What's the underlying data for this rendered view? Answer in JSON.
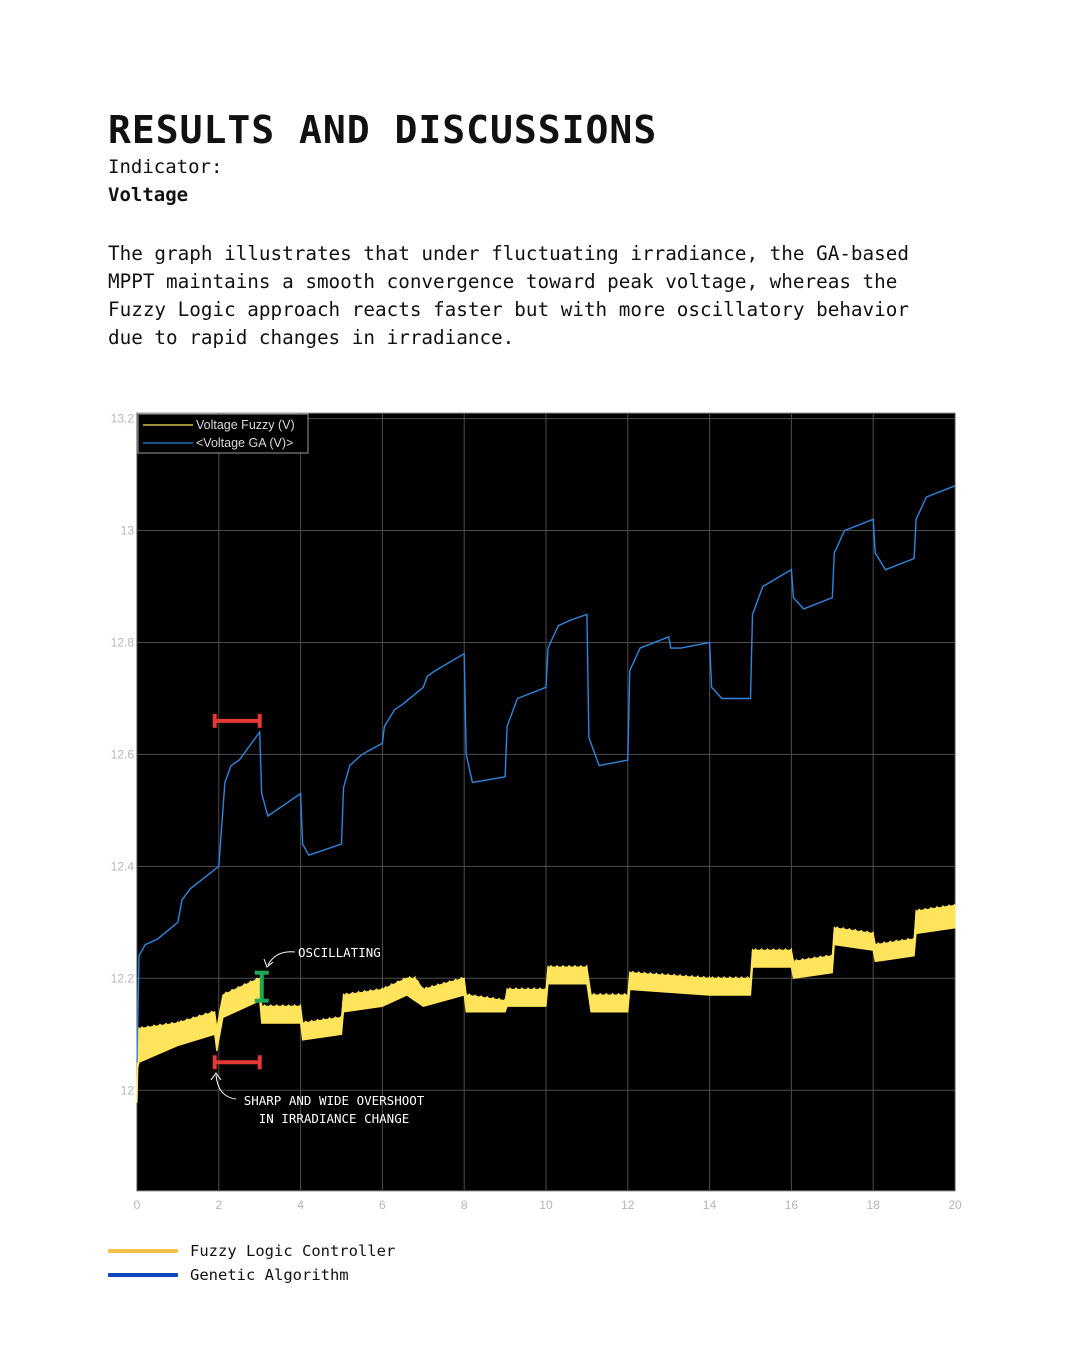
{
  "page": {
    "title": "RESULTS AND DISCUSSIONS",
    "indicator_label": "Indicator:",
    "indicator_value": "Voltage",
    "paragraph": "The graph illustrates that under fluctuating irradiance, the GA-based\nMPPT maintains a smooth convergence toward peak voltage, whereas the\nFuzzy Logic approach reacts faster but with more oscillatory behavior\ndue to rapid changes in irradiance."
  },
  "colors": {
    "fuzzy": "#ffe45c",
    "ga": "#2e86de",
    "legend_fuzzy": "#f7c04a",
    "legend_ga": "#0b47b8",
    "marker_red": "#e53935",
    "marker_green": "#1fa857",
    "plot_bg": "#000000"
  },
  "chart_data": {
    "type": "line",
    "xlim": [
      0,
      20
    ],
    "ylim": [
      11.82,
      13.21
    ],
    "xticks": [
      0,
      2,
      4,
      6,
      8,
      10,
      12,
      14,
      16,
      18,
      20
    ],
    "yticks": [
      12,
      12.2,
      12.4,
      12.6,
      12.8,
      13,
      13.2
    ],
    "grid": true,
    "legend_position": "top-left",
    "series": [
      {
        "name": "Voltage Fuzzy (V)",
        "x": [
          0,
          0.02,
          0.05,
          1,
          1.9,
          1.95,
          2.1,
          3.0,
          3.05,
          4.0,
          4.05,
          5.0,
          5.05,
          6.0,
          6.6,
          6.8,
          7.0,
          8.0,
          8.05,
          9.0,
          9.05,
          10.0,
          10.05,
          11.0,
          11.1,
          12.0,
          12.05,
          14.0,
          15.0,
          15.05,
          16.0,
          16.05,
          17.0,
          17.05,
          18.0,
          18.05,
          19.0,
          19.05,
          20
        ],
        "upper": [
          11.98,
          12.1,
          12.11,
          12.12,
          12.14,
          12.11,
          12.17,
          12.2,
          12.15,
          12.15,
          12.12,
          12.13,
          12.17,
          12.18,
          12.2,
          12.2,
          12.18,
          12.2,
          12.17,
          12.16,
          12.18,
          12.18,
          12.22,
          12.22,
          12.17,
          12.17,
          12.21,
          12.2,
          12.2,
          12.25,
          12.25,
          12.23,
          12.24,
          12.29,
          12.28,
          12.26,
          12.27,
          12.32,
          12.33
        ],
        "lower": [
          11.98,
          12.04,
          12.05,
          12.08,
          12.1,
          12.07,
          12.13,
          12.16,
          12.12,
          12.12,
          12.09,
          12.1,
          12.14,
          12.15,
          12.17,
          12.16,
          12.15,
          12.17,
          12.14,
          12.14,
          12.15,
          12.15,
          12.19,
          12.19,
          12.14,
          12.14,
          12.18,
          12.17,
          12.17,
          12.22,
          12.22,
          12.2,
          12.21,
          12.26,
          12.25,
          12.23,
          12.24,
          12.28,
          12.29
        ]
      },
      {
        "name": "<Voltage GA (V)>",
        "x": [
          0,
          0.05,
          0.2,
          0.5,
          1.0,
          1.1,
          1.3,
          2.0,
          2.05,
          2.15,
          2.3,
          2.5,
          3.0,
          3.05,
          3.2,
          4.0,
          4.05,
          4.2,
          5.0,
          5.05,
          5.2,
          5.5,
          6.0,
          6.05,
          6.3,
          6.5,
          7.0,
          7.1,
          7.3,
          8.0,
          8.05,
          8.2,
          9.0,
          9.05,
          9.3,
          10.0,
          10.05,
          10.3,
          10.6,
          11.0,
          11.05,
          11.3,
          12.0,
          12.05,
          12.3,
          13.0,
          13.05,
          13.3,
          14.0,
          14.05,
          14.3,
          15.0,
          15.05,
          15.3,
          16.0,
          16.05,
          16.3,
          17.0,
          17.05,
          17.3,
          18.0,
          18.05,
          18.3,
          19.0,
          19.05,
          19.3,
          20.0
        ],
        "y": [
          12.05,
          12.24,
          12.26,
          12.27,
          12.3,
          12.34,
          12.36,
          12.4,
          12.45,
          12.55,
          12.58,
          12.59,
          12.64,
          12.53,
          12.49,
          12.53,
          12.44,
          12.42,
          12.44,
          12.54,
          12.58,
          12.6,
          12.62,
          12.65,
          12.68,
          12.69,
          12.72,
          12.74,
          12.75,
          12.78,
          12.6,
          12.55,
          12.56,
          12.65,
          12.7,
          12.72,
          12.79,
          12.83,
          12.84,
          12.85,
          12.63,
          12.58,
          12.59,
          12.75,
          12.79,
          12.81,
          12.79,
          12.79,
          12.8,
          12.72,
          12.7,
          12.7,
          12.85,
          12.9,
          12.93,
          12.88,
          12.86,
          12.88,
          12.96,
          13.0,
          13.02,
          12.96,
          12.93,
          12.95,
          13.02,
          13.06,
          13.08
        ]
      }
    ],
    "annotations": [
      {
        "text": "OSCILLATING"
      },
      {
        "text": "SHARP AND WIDE OVERSHOOT\nIN IRRADIANCE CHANGE"
      }
    ],
    "markers": {
      "red_ga": {
        "x": [
          1.9,
          3.0
        ],
        "y": 12.66
      },
      "red_fuzzy": {
        "x": [
          1.9,
          3.0
        ],
        "y": 12.05
      },
      "green": {
        "x": 3.05,
        "y": [
          12.16,
          12.21
        ]
      }
    }
  },
  "legend_bottom": [
    {
      "label": "Fuzzy Logic Controller"
    },
    {
      "label": "Genetic Algorithm"
    }
  ]
}
